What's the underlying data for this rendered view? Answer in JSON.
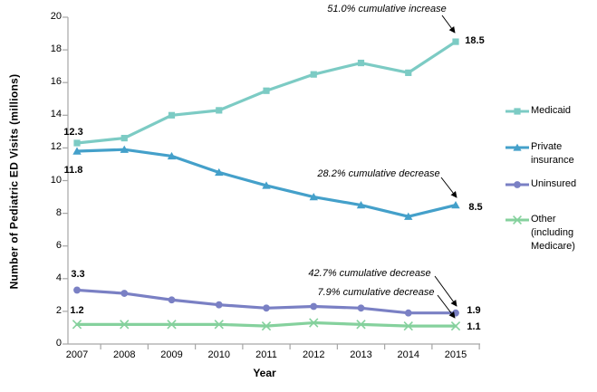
{
  "chart_data": {
    "type": "line",
    "title": "",
    "xlabel": "Year",
    "ylabel": "Number of Pediatric ED Visits (millions)",
    "ylim": [
      0,
      20
    ],
    "grid": false,
    "legend_position": "right",
    "yticks": [
      "0",
      "2",
      "4",
      "6",
      "8",
      "10",
      "12",
      "14",
      "16",
      "18",
      "20"
    ],
    "xticks": [
      "2007",
      "2008",
      "2009",
      "2010",
      "2011",
      "2012",
      "2013",
      "2014",
      "2015"
    ],
    "x": [
      2007,
      2008,
      2009,
      2010,
      2011,
      2012,
      2013,
      2014,
      2015
    ],
    "series": [
      {
        "name": "Medicaid",
        "color": "#7CCBC4",
        "marker": "square",
        "values": [
          12.3,
          12.6,
          14.0,
          14.3,
          15.5,
          16.5,
          17.2,
          16.6,
          18.5
        ],
        "start_label": "12.3",
        "end_label": "18.5"
      },
      {
        "name": "Private insurance",
        "color": "#44A0CA",
        "marker": "triangle",
        "values": [
          11.8,
          11.9,
          11.5,
          10.5,
          9.7,
          9.0,
          8.5,
          7.8,
          8.5
        ],
        "start_label": "11.8",
        "end_label": "8.5"
      },
      {
        "name": "Uninsured",
        "color": "#7A80C4",
        "marker": "circle",
        "values": [
          3.3,
          3.1,
          2.7,
          2.4,
          2.2,
          2.3,
          2.2,
          1.9,
          1.9
        ],
        "start_label": "3.3",
        "end_label": "1.9"
      },
      {
        "name": "Other (including Medicare)",
        "color": "#85D19D",
        "marker": "x",
        "values": [
          1.2,
          1.2,
          1.2,
          1.2,
          1.1,
          1.3,
          1.2,
          1.1,
          1.1
        ],
        "start_label": "1.2",
        "end_label": "1.1"
      }
    ],
    "annotations": [
      {
        "text": "51.0% cumulative increase",
        "target_series": "Medicaid",
        "target_x": 2015
      },
      {
        "text": "28.2% cumulative decrease",
        "target_series": "Private insurance",
        "target_x": 2015
      },
      {
        "text": "42.7% cumulative decrease",
        "target_series": "Uninsured",
        "target_x": 2015
      },
      {
        "text": "7.9% cumulative decrease",
        "target_series": "Other (including Medicare)",
        "target_x": 2015
      }
    ],
    "axis_color": "#A6A6A6",
    "text_color": "#000000"
  }
}
